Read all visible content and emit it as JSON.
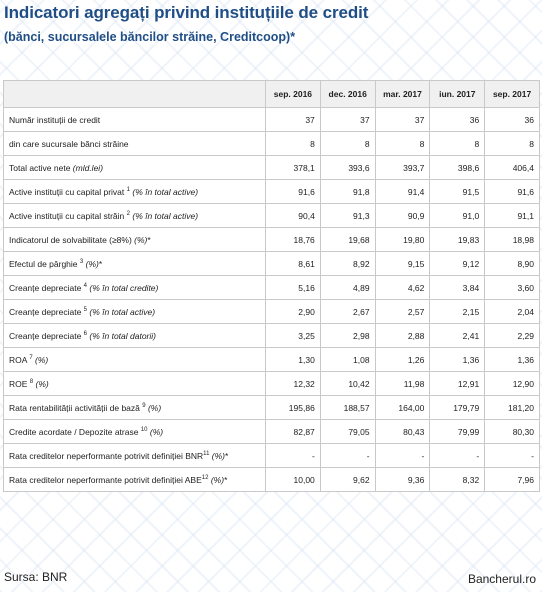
{
  "title": "Indicatori agregați privind instituțiile de credit",
  "subtitle": "(bănci, sucursalele băncilor străine, Creditcoop)*",
  "table": {
    "columns": [
      "sep. 2016",
      "dec. 2016",
      "mar. 2017",
      "iun. 2017",
      "sep. 2017"
    ],
    "rows": [
      {
        "label": "Număr instituții de credit",
        "sup": "",
        "qualifier": "",
        "suffix": "",
        "values": [
          "37",
          "37",
          "37",
          "36",
          "36"
        ]
      },
      {
        "label": " din care sucursale bănci străine",
        "sup": "",
        "qualifier": "",
        "suffix": "",
        "values": [
          "8",
          "8",
          "8",
          "8",
          "8"
        ]
      },
      {
        "label": "Total active nete ",
        "sup": "",
        "qualifier": "(mld.lei)",
        "suffix": "",
        "values": [
          "378,1",
          "393,6",
          "393,7",
          "398,6",
          "406,4"
        ]
      },
      {
        "label": "Active instituții cu capital privat ",
        "sup": "1",
        "qualifier": "(% în total active)",
        "suffix": "",
        "values": [
          "91,6",
          "91,8",
          "91,4",
          "91,5",
          "91,6"
        ]
      },
      {
        "label": "Active instituții cu capital străin ",
        "sup": "2",
        "qualifier": "(% în total active)",
        "suffix": "",
        "values": [
          "90,4",
          "91,3",
          "90,9",
          "91,0",
          "91,1"
        ]
      },
      {
        "label": "Indicatorul de solvabilitate (≥8%) ",
        "sup": "",
        "qualifier": "(%)",
        "suffix": "*",
        "values": [
          "18,76",
          "19,68",
          "19,80",
          "19,83",
          "18,98"
        ]
      },
      {
        "label": "Efectul de pârghie ",
        "sup": "3",
        "qualifier": "(%)",
        "suffix": "*",
        "values": [
          "8,61",
          "8,92",
          "9,15",
          "9,12",
          "8,90"
        ]
      },
      {
        "label": "Creanțe depreciate ",
        "sup": "4",
        "qualifier": "(% în total credite)",
        "suffix": "",
        "values": [
          "5,16",
          "4,89",
          "4,62",
          "3,84",
          "3,60"
        ]
      },
      {
        "label": "Creanțe depreciate ",
        "sup": "5",
        "qualifier": "(% în total active)",
        "suffix": "",
        "values": [
          "2,90",
          "2,67",
          "2,57",
          "2,15",
          "2,04"
        ]
      },
      {
        "label": "Creanțe depreciate ",
        "sup": "6",
        "qualifier": "(% în total datorii)",
        "suffix": "",
        "values": [
          "3,25",
          "2,98",
          "2,88",
          "2,41",
          "2,29"
        ]
      },
      {
        "label": "ROA ",
        "sup": "7",
        "qualifier": "(%)",
        "suffix": "",
        "values": [
          "1,30",
          "1,08",
          "1,26",
          "1,36",
          "1,36"
        ]
      },
      {
        "label": "ROE ",
        "sup": "8",
        "qualifier": "(%)",
        "suffix": "",
        "values": [
          "12,32",
          "10,42",
          "11,98",
          "12,91",
          "12,90"
        ]
      },
      {
        "label": "Rata rentabilității activității de bază ",
        "sup": "9",
        "qualifier": "(%)",
        "suffix": "",
        "values": [
          "195,86",
          "188,57",
          "164,00",
          "179,79",
          "181,20"
        ]
      },
      {
        "label": "Credite acordate / Depozite atrase ",
        "sup": "10",
        "qualifier": "(%)",
        "suffix": "",
        "values": [
          "82,87",
          "79,05",
          "80,43",
          "79,99",
          "80,30"
        ]
      },
      {
        "label": "Rata creditelor neperformante potrivit definiției BNR",
        "sup": "11",
        "qualifier": "(%)",
        "suffix": "*",
        "values": [
          "-",
          "-",
          "-",
          "-",
          "-"
        ]
      },
      {
        "label": "Rata creditelor neperformante potrivit definiției ABE",
        "sup": "12",
        "qualifier": "(%)",
        "suffix": "*",
        "values": [
          "10,00",
          "9,62",
          "9,36",
          "8,32",
          "7,96"
        ]
      }
    ]
  },
  "footer": {
    "source": "Sursa: BNR",
    "brand": "Bancherul.ro"
  }
}
